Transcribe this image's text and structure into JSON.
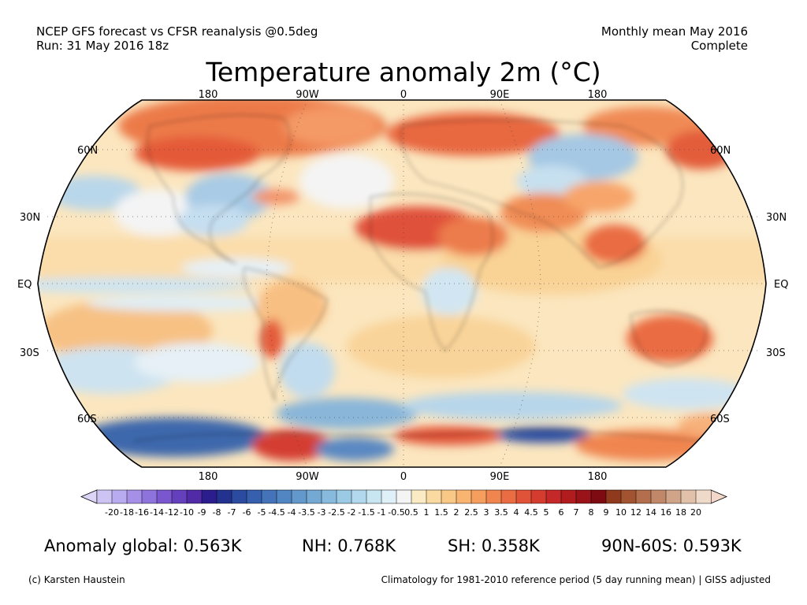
{
  "header": {
    "left_line1": "NCEP GFS forecast vs CFSR reanalysis @0.5deg",
    "left_line2": "Run: 31 May 2016 18z",
    "right_line1": "Monthly mean May 2016",
    "right_line2": "Complete"
  },
  "title": "Temperature anomaly 2m (°C)",
  "map": {
    "projection": "Robinson",
    "lon_labels_top": [
      "180",
      "90W",
      "0",
      "90E",
      "180"
    ],
    "lon_labels_bottom": [
      "180",
      "90W",
      "0",
      "90E",
      "180"
    ],
    "lat_labels_left": [
      "60N",
      "30N",
      "EQ",
      "30S",
      "60S"
    ],
    "lat_labels_right": [
      "60N",
      "30N",
      "EQ",
      "30S",
      "60S"
    ]
  },
  "colorbar": {
    "ticks": [
      "-20",
      "-18",
      "-16",
      "-14",
      "-12",
      "-10",
      "-9",
      "-8",
      "-7",
      "-6",
      "-5",
      "-4.5",
      "-4",
      "-3.5",
      "-3",
      "-2.5",
      "-2",
      "-1.5",
      "-1",
      "-0.5",
      "0.5",
      "1",
      "1.5",
      "2",
      "2.5",
      "3",
      "3.5",
      "4",
      "4.5",
      "5",
      "6",
      "7",
      "8",
      "9",
      "10",
      "12",
      "14",
      "16",
      "18",
      "20"
    ],
    "colors": [
      "#cdc4f4",
      "#b9abef",
      "#a58fe7",
      "#8f73dd",
      "#7a57cf",
      "#6540bd",
      "#502aa7",
      "#2c1d8f",
      "#23328f",
      "#2b4ba0",
      "#365fae",
      "#4473b9",
      "#5286c3",
      "#6398cc",
      "#74a9d4",
      "#87badc",
      "#9bcae4",
      "#b1d8ec",
      "#c8e5f2",
      "#e0f0f8",
      "#f4f4f4",
      "#fbebc4",
      "#fbdaa1",
      "#fac886",
      "#f8b470",
      "#f59e5e",
      "#f08550",
      "#ea6c43",
      "#e05338",
      "#d43c30",
      "#c52828",
      "#b11c1f",
      "#991319",
      "#7d0b11",
      "#8f3a1c",
      "#a2532f",
      "#b26e4d",
      "#c08868",
      "#d0a488",
      "#e1c1aa",
      "#efd9c8"
    ]
  },
  "stats": {
    "global": "Anomaly global: 0.563K",
    "nh": "NH: 0.768K",
    "sh": "SH: 0.358K",
    "arctic": "90N-60S: 0.593K"
  },
  "footer": {
    "left": "(c) Karsten Haustein",
    "right": "Climatology for 1981-2010 reference period (5 day running mean) | GISS adjusted"
  }
}
